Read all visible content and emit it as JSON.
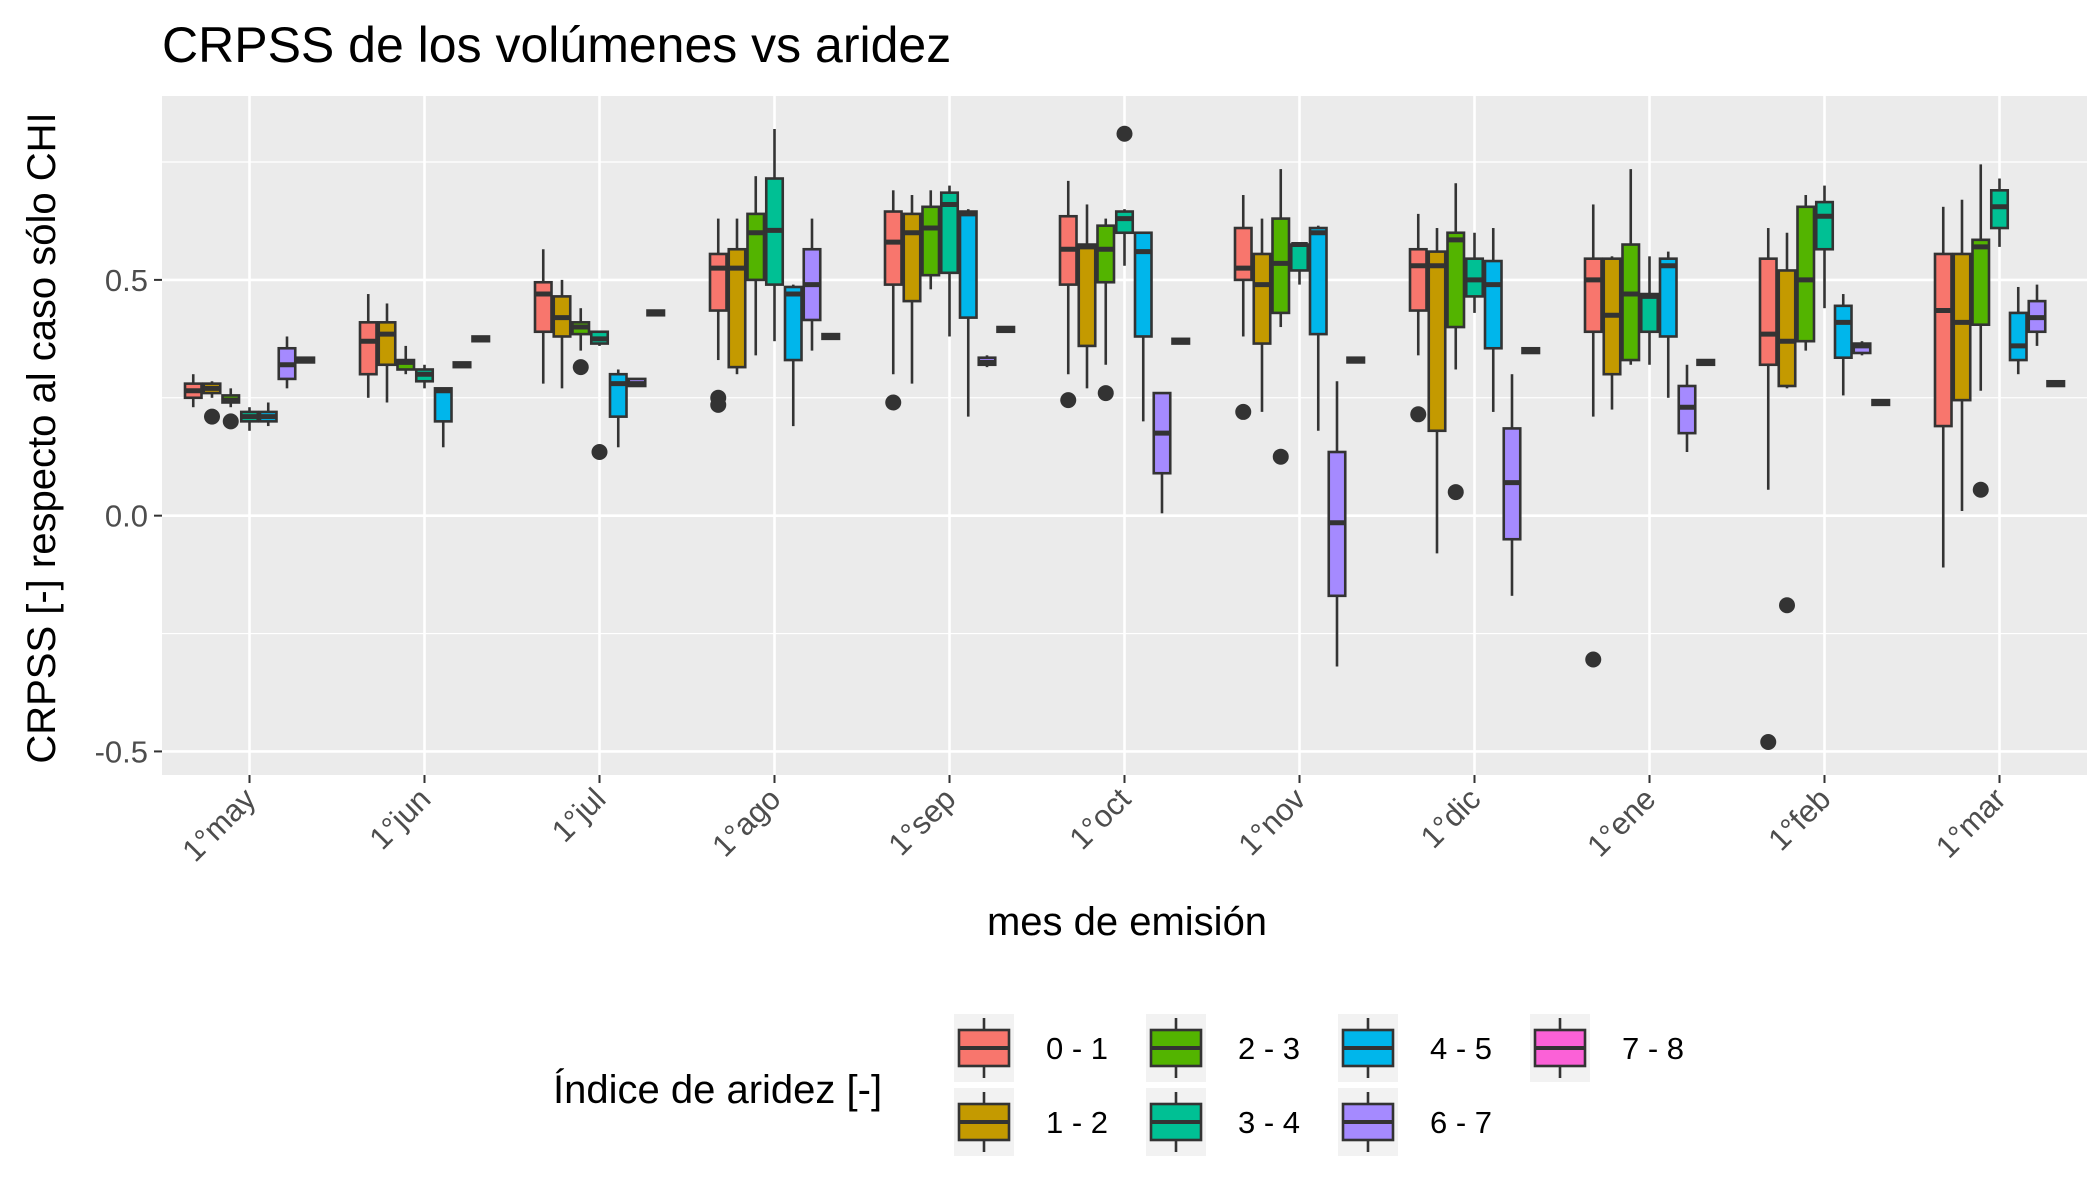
{
  "chart_data": {
    "type": "boxplot",
    "title": "CRPSS de los volúmenes vs aridez",
    "xlabel": "mes de emisión",
    "ylabel": "CRPSS [-] respecto al caso sólo CHI",
    "ylim": [
      -0.55,
      0.89
    ],
    "yticks": [
      -0.5,
      0.0,
      0.5
    ],
    "ytick_labels": [
      "-0.5",
      "0.0",
      "0.5"
    ],
    "categories": [
      "1°may",
      "1°jun",
      "1°jul",
      "1°ago",
      "1°sep",
      "1°oct",
      "1°nov",
      "1°dic",
      "1°ene",
      "1°feb",
      "1°mar"
    ],
    "legend": {
      "title": "Índice de aridez [-]",
      "position": "bottom",
      "items": [
        "0 - 1",
        "1 - 2",
        "2 - 3",
        "3 - 4",
        "4 - 5",
        "6 - 7",
        "7 - 8"
      ]
    },
    "colors": {
      "0 - 1": "#F8766D",
      "1 - 2": "#C49A00",
      "2 - 3": "#53B400",
      "3 - 4": "#00C094",
      "4 - 5": "#00B6EB",
      "6 - 7": "#A58AFF",
      "7 - 8": "#FB61D7"
    },
    "panel_background": "#EBEBEB",
    "grid": true,
    "series_order": [
      "0 - 1",
      "1 - 2",
      "2 - 3",
      "3 - 4",
      "4 - 5",
      "6 - 7",
      "7 - 8"
    ],
    "boxes": [
      [
        {
          "min": 0.23,
          "q1": 0.25,
          "median": 0.265,
          "q3": 0.28,
          "max": 0.3,
          "outliers": []
        },
        {
          "min": 0.25,
          "q1": 0.26,
          "median": 0.27,
          "q3": 0.28,
          "max": 0.285,
          "outliers": [
            0.21
          ]
        },
        {
          "min": 0.23,
          "q1": 0.24,
          "median": 0.245,
          "q3": 0.255,
          "max": 0.27,
          "outliers": [
            0.2
          ]
        },
        {
          "min": 0.18,
          "q1": 0.2,
          "median": 0.21,
          "q3": 0.22,
          "max": 0.23,
          "outliers": []
        },
        {
          "min": 0.19,
          "q1": 0.2,
          "median": 0.21,
          "q3": 0.22,
          "max": 0.24,
          "outliers": []
        },
        {
          "min": 0.27,
          "q1": 0.29,
          "median": 0.32,
          "q3": 0.355,
          "max": 0.38,
          "outliers": []
        },
        {
          "min": 0.325,
          "q1": 0.325,
          "median": 0.33,
          "q3": 0.335,
          "max": 0.335,
          "outliers": []
        }
      ],
      [
        {
          "min": 0.25,
          "q1": 0.3,
          "median": 0.37,
          "q3": 0.41,
          "max": 0.47,
          "outliers": []
        },
        {
          "min": 0.24,
          "q1": 0.32,
          "median": 0.385,
          "q3": 0.41,
          "max": 0.45,
          "outliers": []
        },
        {
          "min": 0.3,
          "q1": 0.31,
          "median": 0.325,
          "q3": 0.33,
          "max": 0.36,
          "outliers": []
        },
        {
          "min": 0.27,
          "q1": 0.285,
          "median": 0.3,
          "q3": 0.31,
          "max": 0.32,
          "outliers": []
        },
        {
          "min": 0.145,
          "q1": 0.2,
          "median": 0.265,
          "q3": 0.27,
          "max": 0.27,
          "outliers": []
        },
        {
          "min": 0.315,
          "q1": 0.315,
          "median": 0.32,
          "q3": 0.325,
          "max": 0.325,
          "outliers": []
        },
        {
          "min": 0.37,
          "q1": 0.37,
          "median": 0.375,
          "q3": 0.38,
          "max": 0.38,
          "outliers": []
        }
      ],
      [
        {
          "min": 0.28,
          "q1": 0.39,
          "median": 0.47,
          "q3": 0.495,
          "max": 0.565,
          "outliers": []
        },
        {
          "min": 0.27,
          "q1": 0.38,
          "median": 0.42,
          "q3": 0.465,
          "max": 0.5,
          "outliers": []
        },
        {
          "min": 0.35,
          "q1": 0.385,
          "median": 0.4,
          "q3": 0.41,
          "max": 0.44,
          "outliers": [
            0.315
          ]
        },
        {
          "min": 0.36,
          "q1": 0.365,
          "median": 0.375,
          "q3": 0.39,
          "max": 0.39,
          "outliers": [
            0.135
          ]
        },
        {
          "min": 0.145,
          "q1": 0.21,
          "median": 0.28,
          "q3": 0.3,
          "max": 0.31,
          "outliers": []
        },
        {
          "min": 0.275,
          "q1": 0.275,
          "median": 0.28,
          "q3": 0.29,
          "max": 0.29,
          "outliers": []
        },
        {
          "min": 0.425,
          "q1": 0.425,
          "median": 0.43,
          "q3": 0.435,
          "max": 0.435,
          "outliers": []
        }
      ],
      [
        {
          "min": 0.33,
          "q1": 0.435,
          "median": 0.525,
          "q3": 0.555,
          "max": 0.63,
          "outliers": [
            0.25,
            0.235
          ]
        },
        {
          "min": 0.3,
          "q1": 0.315,
          "median": 0.525,
          "q3": 0.565,
          "max": 0.63,
          "outliers": []
        },
        {
          "min": 0.34,
          "q1": 0.5,
          "median": 0.6,
          "q3": 0.64,
          "max": 0.72,
          "outliers": []
        },
        {
          "min": 0.37,
          "q1": 0.49,
          "median": 0.605,
          "q3": 0.715,
          "max": 0.82,
          "outliers": []
        },
        {
          "min": 0.19,
          "q1": 0.33,
          "median": 0.47,
          "q3": 0.485,
          "max": 0.49,
          "outliers": []
        },
        {
          "min": 0.35,
          "q1": 0.415,
          "median": 0.49,
          "q3": 0.565,
          "max": 0.63,
          "outliers": []
        },
        {
          "min": 0.375,
          "q1": 0.375,
          "median": 0.38,
          "q3": 0.385,
          "max": 0.385,
          "outliers": []
        }
      ],
      [
        {
          "min": 0.3,
          "q1": 0.49,
          "median": 0.58,
          "q3": 0.645,
          "max": 0.69,
          "outliers": [
            0.24
          ]
        },
        {
          "min": 0.28,
          "q1": 0.455,
          "median": 0.6,
          "q3": 0.64,
          "max": 0.68,
          "outliers": []
        },
        {
          "min": 0.48,
          "q1": 0.51,
          "median": 0.61,
          "q3": 0.655,
          "max": 0.69,
          "outliers": []
        },
        {
          "min": 0.38,
          "q1": 0.515,
          "median": 0.66,
          "q3": 0.685,
          "max": 0.7,
          "outliers": []
        },
        {
          "min": 0.21,
          "q1": 0.42,
          "median": 0.64,
          "q3": 0.645,
          "max": 0.65,
          "outliers": []
        },
        {
          "min": 0.315,
          "q1": 0.32,
          "median": 0.325,
          "q3": 0.335,
          "max": 0.34,
          "outliers": []
        },
        {
          "min": 0.39,
          "q1": 0.39,
          "median": 0.395,
          "q3": 0.4,
          "max": 0.4,
          "outliers": []
        }
      ],
      [
        {
          "min": 0.3,
          "q1": 0.49,
          "median": 0.565,
          "q3": 0.635,
          "max": 0.71,
          "outliers": [
            0.245
          ]
        },
        {
          "min": 0.27,
          "q1": 0.36,
          "median": 0.57,
          "q3": 0.575,
          "max": 0.66,
          "outliers": []
        },
        {
          "min": 0.32,
          "q1": 0.495,
          "median": 0.565,
          "q3": 0.615,
          "max": 0.63,
          "outliers": [
            0.26
          ]
        },
        {
          "min": 0.53,
          "q1": 0.6,
          "median": 0.63,
          "q3": 0.645,
          "max": 0.65,
          "outliers": [
            0.81
          ]
        },
        {
          "min": 0.2,
          "q1": 0.38,
          "median": 0.56,
          "q3": 0.6,
          "max": 0.6,
          "outliers": []
        },
        {
          "min": 0.005,
          "q1": 0.09,
          "median": 0.175,
          "q3": 0.26,
          "max": 0.26,
          "outliers": []
        },
        {
          "min": 0.365,
          "q1": 0.365,
          "median": 0.37,
          "q3": 0.375,
          "max": 0.375,
          "outliers": []
        }
      ],
      [
        {
          "min": 0.38,
          "q1": 0.5,
          "median": 0.525,
          "q3": 0.61,
          "max": 0.68,
          "outliers": [
            0.22
          ]
        },
        {
          "min": 0.22,
          "q1": 0.365,
          "median": 0.49,
          "q3": 0.555,
          "max": 0.63,
          "outliers": []
        },
        {
          "min": 0.4,
          "q1": 0.43,
          "median": 0.535,
          "q3": 0.63,
          "max": 0.735,
          "outliers": [
            0.125
          ]
        },
        {
          "min": 0.49,
          "q1": 0.52,
          "median": 0.575,
          "q3": 0.575,
          "max": 0.58,
          "outliers": []
        },
        {
          "min": 0.18,
          "q1": 0.385,
          "median": 0.6,
          "q3": 0.61,
          "max": 0.615,
          "outliers": []
        },
        {
          "min": -0.32,
          "q1": -0.17,
          "median": -0.015,
          "q3": 0.135,
          "max": 0.285,
          "outliers": []
        },
        {
          "min": 0.325,
          "q1": 0.325,
          "median": 0.33,
          "q3": 0.335,
          "max": 0.335,
          "outliers": []
        }
      ],
      [
        {
          "min": 0.34,
          "q1": 0.435,
          "median": 0.53,
          "q3": 0.565,
          "max": 0.64,
          "outliers": [
            0.215
          ]
        },
        {
          "min": -0.08,
          "q1": 0.18,
          "median": 0.53,
          "q3": 0.56,
          "max": 0.61,
          "outliers": []
        },
        {
          "min": 0.31,
          "q1": 0.4,
          "median": 0.585,
          "q3": 0.6,
          "max": 0.705,
          "outliers": [
            0.05
          ]
        },
        {
          "min": 0.43,
          "q1": 0.465,
          "median": 0.5,
          "q3": 0.545,
          "max": 0.6,
          "outliers": []
        },
        {
          "min": 0.22,
          "q1": 0.355,
          "median": 0.49,
          "q3": 0.54,
          "max": 0.61,
          "outliers": []
        },
        {
          "min": -0.17,
          "q1": -0.05,
          "median": 0.07,
          "q3": 0.185,
          "max": 0.3,
          "outliers": []
        },
        {
          "min": 0.345,
          "q1": 0.345,
          "median": 0.35,
          "q3": 0.355,
          "max": 0.355,
          "outliers": []
        }
      ],
      [
        {
          "min": 0.21,
          "q1": 0.39,
          "median": 0.5,
          "q3": 0.545,
          "max": 0.66,
          "outliers": [
            -0.305
          ]
        },
        {
          "min": 0.225,
          "q1": 0.3,
          "median": 0.425,
          "q3": 0.545,
          "max": 0.55,
          "outliers": []
        },
        {
          "min": 0.32,
          "q1": 0.33,
          "median": 0.47,
          "q3": 0.575,
          "max": 0.735,
          "outliers": []
        },
        {
          "min": 0.32,
          "q1": 0.39,
          "median": 0.465,
          "q3": 0.47,
          "max": 0.55,
          "outliers": []
        },
        {
          "min": 0.25,
          "q1": 0.38,
          "median": 0.53,
          "q3": 0.545,
          "max": 0.56,
          "outliers": []
        },
        {
          "min": 0.135,
          "q1": 0.175,
          "median": 0.23,
          "q3": 0.275,
          "max": 0.32,
          "outliers": []
        },
        {
          "min": 0.32,
          "q1": 0.32,
          "median": 0.325,
          "q3": 0.33,
          "max": 0.33,
          "outliers": []
        }
      ],
      [
        {
          "min": 0.055,
          "q1": 0.32,
          "median": 0.385,
          "q3": 0.545,
          "max": 0.61,
          "outliers": [
            -0.48
          ]
        },
        {
          "min": 0.27,
          "q1": 0.275,
          "median": 0.37,
          "q3": 0.52,
          "max": 0.6,
          "outliers": [
            -0.19
          ]
        },
        {
          "min": 0.35,
          "q1": 0.37,
          "median": 0.5,
          "q3": 0.655,
          "max": 0.68,
          "outliers": []
        },
        {
          "min": 0.44,
          "q1": 0.565,
          "median": 0.635,
          "q3": 0.665,
          "max": 0.7,
          "outliers": []
        },
        {
          "min": 0.255,
          "q1": 0.335,
          "median": 0.41,
          "q3": 0.445,
          "max": 0.47,
          "outliers": []
        },
        {
          "min": 0.34,
          "q1": 0.345,
          "median": 0.36,
          "q3": 0.365,
          "max": 0.37,
          "outliers": []
        },
        {
          "min": 0.235,
          "q1": 0.235,
          "median": 0.24,
          "q3": 0.245,
          "max": 0.245,
          "outliers": []
        }
      ],
      [
        {
          "min": -0.11,
          "q1": 0.19,
          "median": 0.435,
          "q3": 0.555,
          "max": 0.655,
          "outliers": []
        },
        {
          "min": 0.01,
          "q1": 0.245,
          "median": 0.41,
          "q3": 0.555,
          "max": 0.67,
          "outliers": []
        },
        {
          "min": 0.265,
          "q1": 0.405,
          "median": 0.57,
          "q3": 0.585,
          "max": 0.745,
          "outliers": [
            0.055
          ]
        },
        {
          "min": 0.57,
          "q1": 0.61,
          "median": 0.655,
          "q3": 0.69,
          "max": 0.715,
          "outliers": []
        },
        {
          "min": 0.3,
          "q1": 0.33,
          "median": 0.36,
          "q3": 0.43,
          "max": 0.485,
          "outliers": []
        },
        {
          "min": 0.36,
          "q1": 0.39,
          "median": 0.42,
          "q3": 0.455,
          "max": 0.49,
          "outliers": []
        },
        {
          "min": 0.275,
          "q1": 0.275,
          "median": 0.28,
          "q3": 0.285,
          "max": 0.285,
          "outliers": []
        }
      ]
    ]
  }
}
